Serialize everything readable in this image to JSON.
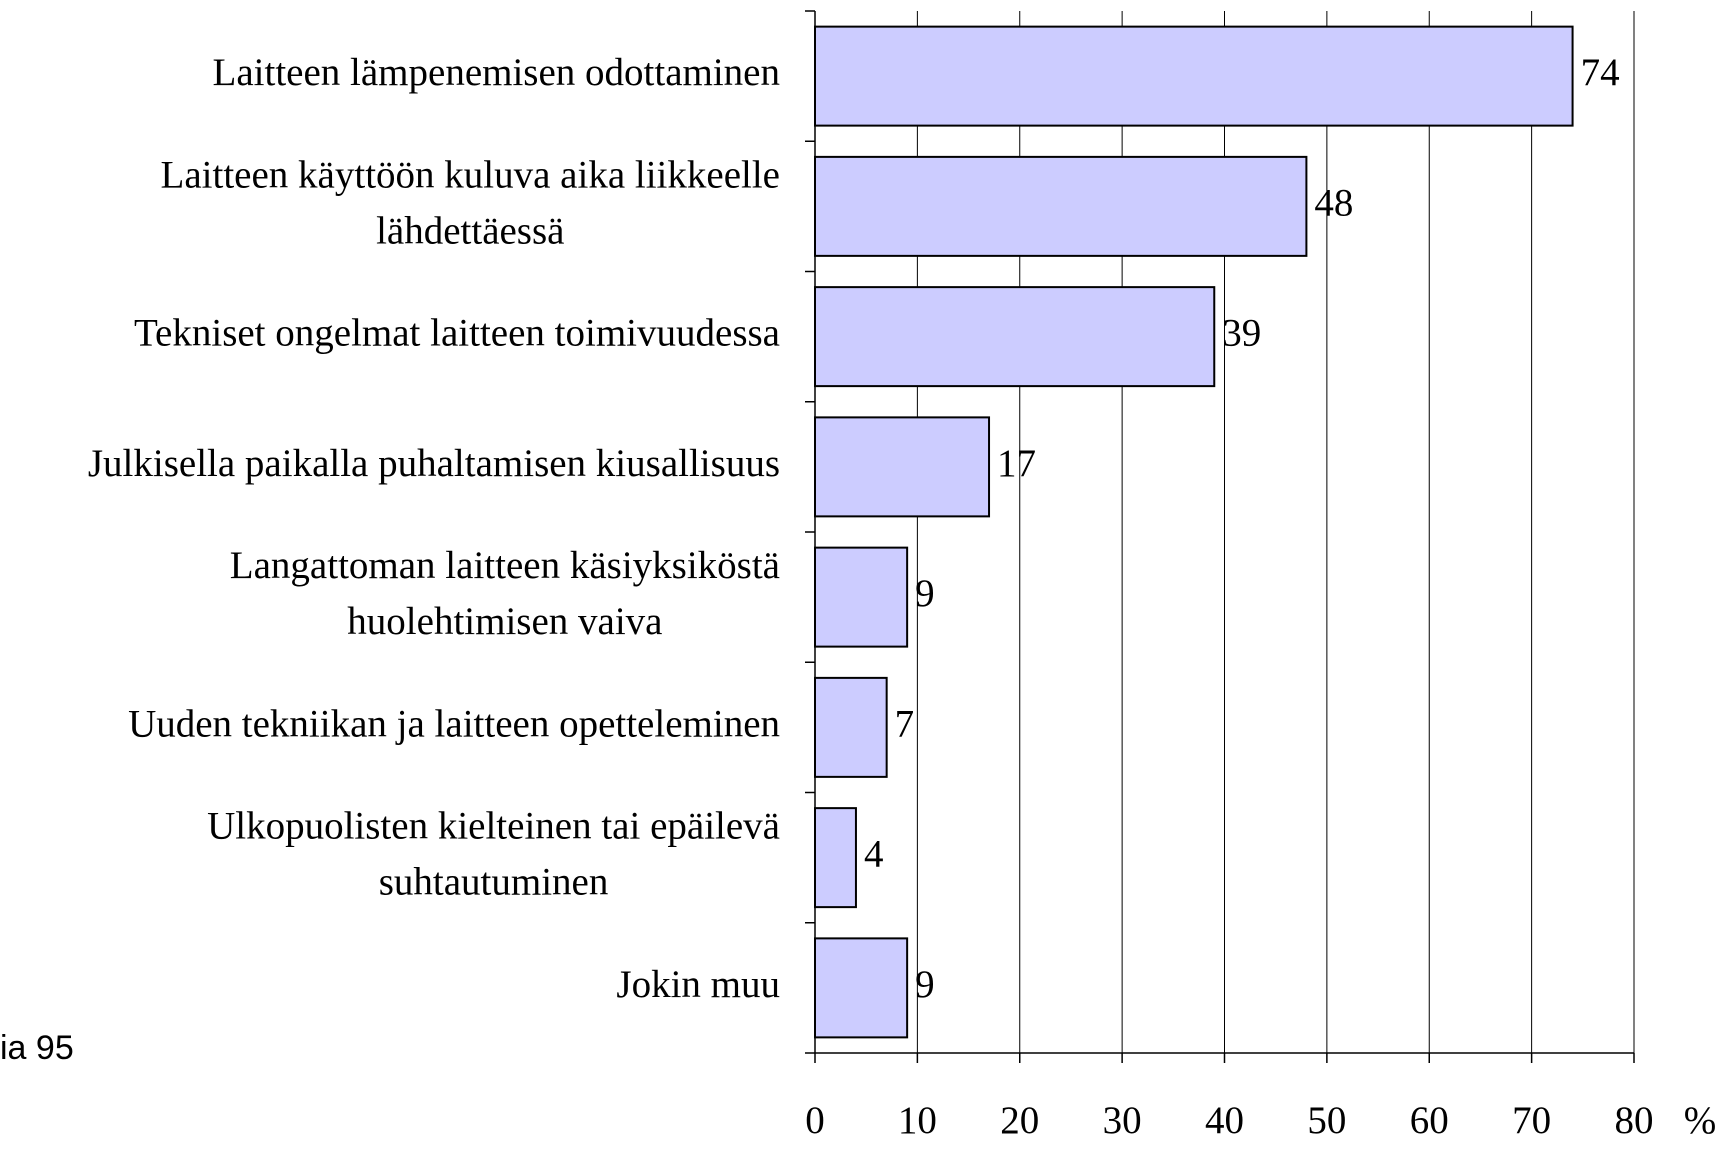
{
  "chart_data": {
    "type": "bar",
    "orientation": "horizontal",
    "categories": [
      "Laitteen lämpenemisen odottaminen",
      "Laitteen käyttöön kuluva aika liikkeelle\nlähdettäessä",
      "Tekniset ongelmat laitteen toimivuudessa",
      "Julkisella paikalla puhaltamisen kiusallisuus",
      "Langattoman laitteen käsiyksiköstä\nhuolehtimisen vaiva",
      "Uuden tekniikan ja laitteen opetteleminen",
      "Ulkopuolisten kielteinen tai epäilevä\nsuhtautuminen",
      "Jokin muu"
    ],
    "values": [
      74,
      48,
      39,
      17,
      9,
      7,
      4,
      9
    ],
    "color": "#ccccff",
    "xlim": [
      0,
      80
    ],
    "xticks": [
      0,
      10,
      20,
      30,
      40,
      50,
      60,
      70,
      80
    ],
    "x_label": "%",
    "grid": true,
    "annotation": "ia 95"
  }
}
